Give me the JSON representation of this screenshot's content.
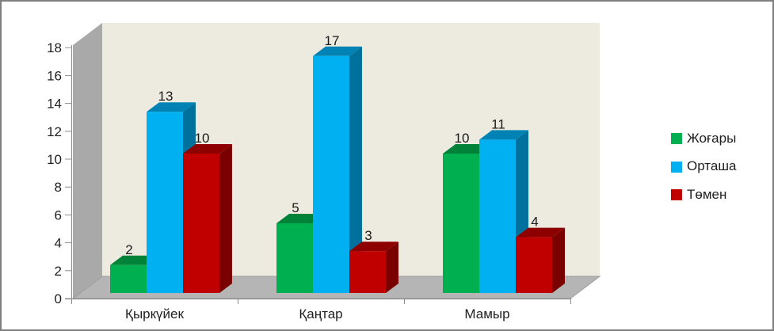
{
  "chart_data": {
    "type": "bar",
    "projection": "3d-clustered-column",
    "title": "",
    "xlabel": "",
    "ylabel": "",
    "categories": [
      "Қыркүйек",
      "Қаңтар",
      "Мамыр"
    ],
    "series": [
      {
        "name": "Жоғары",
        "values": [
          2,
          5,
          10
        ],
        "color": "#00B050",
        "color_top": "#008238",
        "color_side": "#00702F"
      },
      {
        "name": "Орташа",
        "values": [
          13,
          17,
          11
        ],
        "color": "#00B0F0",
        "color_top": "#0083B4",
        "color_side": "#00719C"
      },
      {
        "name": "Төмен",
        "values": [
          10,
          3,
          4
        ],
        "color": "#C00000",
        "color_top": "#8E0000",
        "color_side": "#7A0000"
      }
    ],
    "ylim": [
      0,
      18
    ],
    "ytick_step": 2,
    "yticks": [
      0,
      2,
      4,
      6,
      8,
      10,
      12,
      14,
      16,
      18
    ],
    "grid": false,
    "data_labels": true,
    "legend_position": "right"
  },
  "colors": {
    "chart_bg": "#FFFFFF",
    "plot_bg": "#EDEBE0",
    "wall": "#A9A9A9",
    "floor": "#B5B5B5",
    "axis": "#8C8C8C",
    "text": "#1F1F1F",
    "border": "#7F7F7F"
  }
}
